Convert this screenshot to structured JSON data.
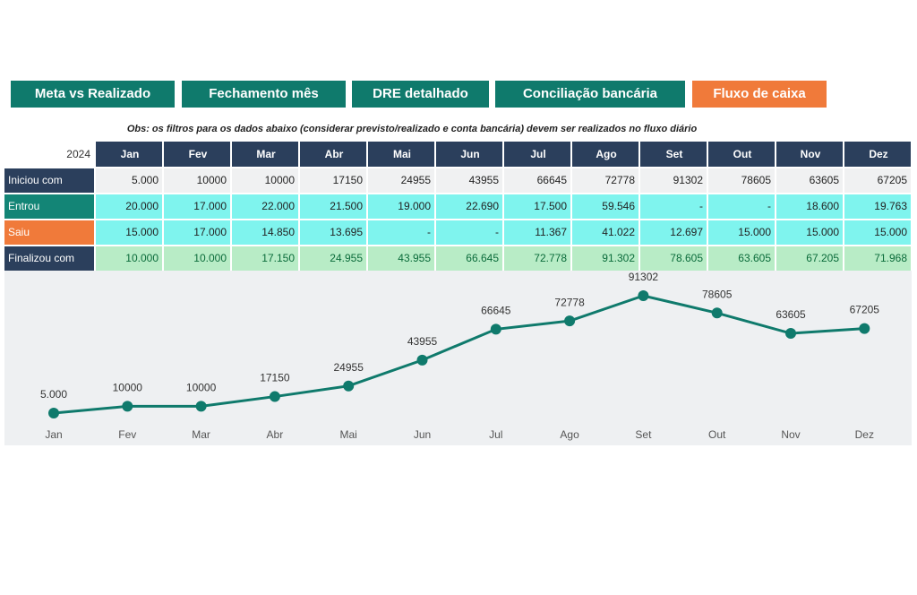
{
  "tabs": [
    "Meta vs Realizado",
    "Fechamento mês",
    "DRE detalhado",
    "Conciliação bancária",
    "Fluxo de caixa"
  ],
  "note": "Obs: os filtros para os dados abaixo (considerar previsto/realizado e conta bancária) devem ser realizados no fluxo diário",
  "table": {
    "year": "2024",
    "columns": [
      "Jan",
      "Fev",
      "Mar",
      "Abr",
      "Mai",
      "Jun",
      "Jul",
      "Ago",
      "Set",
      "Out",
      "Nov",
      "Dez"
    ],
    "rows": [
      {
        "label": "Iniciou com",
        "cells": [
          "5.000",
          "10000",
          "10000",
          "17150",
          "24955",
          "43955",
          "66645",
          "72778",
          "91302",
          "78605",
          "63605",
          "67205"
        ]
      },
      {
        "label": "Entrou",
        "cells": [
          "20.000",
          "17.000",
          "22.000",
          "21.500",
          "19.000",
          "22.690",
          "17.500",
          "59.546",
          "-",
          "-",
          "18.600",
          "19.763"
        ]
      },
      {
        "label": "Saiu",
        "cells": [
          "15.000",
          "17.000",
          "14.850",
          "13.695",
          "-",
          "-",
          "11.367",
          "41.022",
          "12.697",
          "15.000",
          "15.000",
          "15.000"
        ]
      },
      {
        "label": "Finalizou com",
        "cells": [
          "10.000",
          "10.000",
          "17.150",
          "24.955",
          "43.955",
          "66.645",
          "72.778",
          "91.302",
          "78.605",
          "63.605",
          "67.205",
          "71.968"
        ]
      }
    ]
  },
  "chart_data": {
    "type": "line",
    "categories": [
      "Jan",
      "Fev",
      "Mar",
      "Abr",
      "Mai",
      "Jun",
      "Jul",
      "Ago",
      "Set",
      "Out",
      "Nov",
      "Dez"
    ],
    "values": [
      5000,
      10000,
      10000,
      17150,
      24955,
      43955,
      66645,
      72778,
      91302,
      78605,
      63605,
      67205
    ],
    "value_labels": [
      "5.000",
      "10000",
      "10000",
      "17150",
      "24955",
      "43955",
      "66645",
      "72778",
      "91302",
      "78605",
      "63605",
      "67205"
    ],
    "color": "#0f7a6c"
  }
}
